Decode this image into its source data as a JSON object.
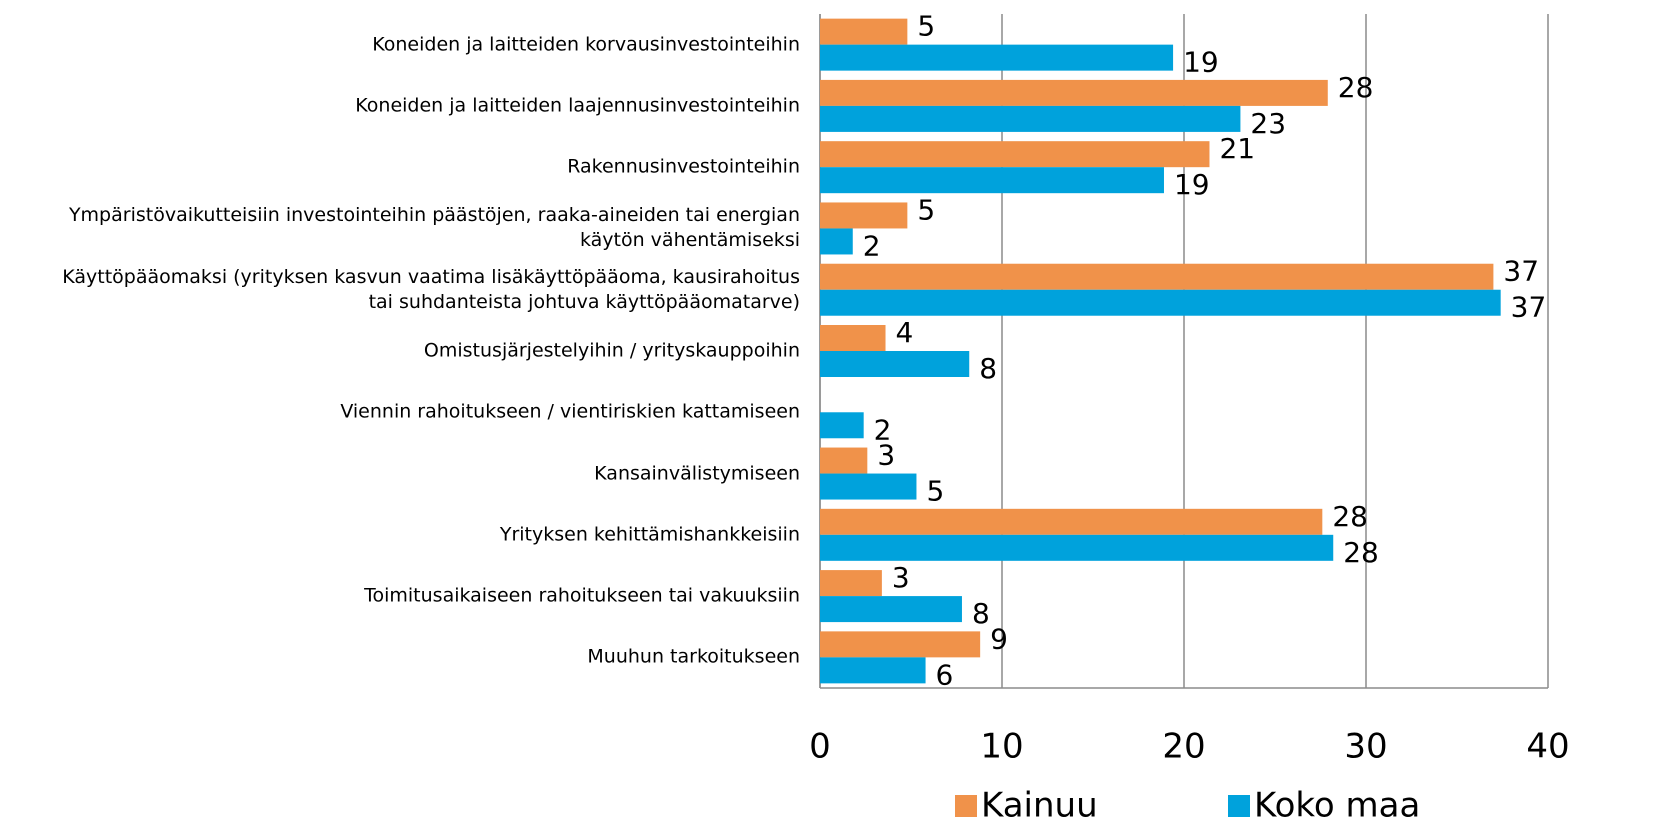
{
  "chart_data": {
    "type": "bar",
    "orientation": "horizontal",
    "categories": [
      "Koneiden ja laitteiden korvausinvestointeihin",
      "Koneiden ja laitteiden laajennusinvestointeihin",
      "Rakennusinvestointeihin",
      "Ympäristövaikutteisiin investointeihin päästöjen, raaka-aineiden tai energian\nkäytön vähentämiseksi",
      "Käyttöpääomaksi (yrityksen kasvun vaatima lisäkäyttöpääoma, kausirahoitus\ntai suhdanteista johtuva käyttöpääomatarve)",
      "Omistusjärjestelyihin / yrityskauppoihin",
      "Viennin rahoitukseen / vientiriskien kattamiseen",
      "Kansainvälistymiseen",
      "Yrityksen kehittämishankkeisiin",
      "Toimitusaikaiseen rahoitukseen tai vakuuksiin",
      "Muuhun tarkoitukseen"
    ],
    "series": [
      {
        "name": "Kainuu",
        "color": "#f0924a",
        "values": [
          4.8,
          27.9,
          21.4,
          4.8,
          37.0,
          3.6,
          null,
          2.6,
          27.6,
          3.4,
          8.8
        ],
        "value_labels": [
          "5",
          "28",
          "21",
          "5",
          "37",
          "4",
          null,
          "3",
          "28",
          "3",
          "9"
        ]
      },
      {
        "name": "Koko maa",
        "color": "#00a2dc",
        "values": [
          19.4,
          23.1,
          18.9,
          1.8,
          37.4,
          8.2,
          2.4,
          5.3,
          28.2,
          7.8,
          5.8
        ],
        "value_labels": [
          "19",
          "23",
          "19",
          "2",
          "37",
          "8",
          "2",
          "5",
          "28",
          "8",
          "6"
        ]
      }
    ],
    "xlim": [
      0,
      40
    ],
    "xticks": [
      0,
      10,
      20,
      30,
      40
    ],
    "grid": true,
    "legend": "bottom"
  }
}
